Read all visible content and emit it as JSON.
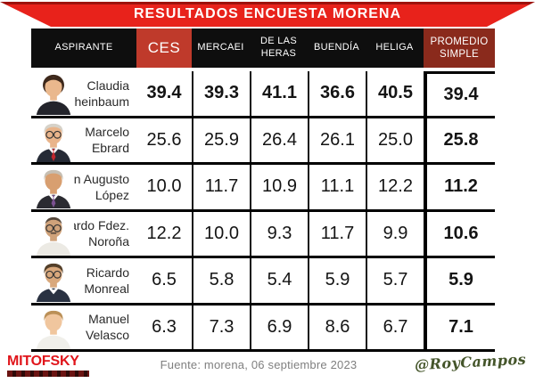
{
  "banner": {
    "title": "RESULTADOS ENCUESTA MORENA"
  },
  "table": {
    "columns": [
      {
        "key": "aspirante",
        "label_lines": [
          "ASPIRANTE"
        ]
      },
      {
        "key": "ces",
        "label_lines": [
          "CES"
        ],
        "highlight": "red"
      },
      {
        "key": "mercaei",
        "label_lines": [
          "MERCAEI"
        ]
      },
      {
        "key": "heras",
        "label_lines": [
          "DE LAS",
          "HERAS"
        ]
      },
      {
        "key": "buendia",
        "label_lines": [
          "BUENDÍA"
        ]
      },
      {
        "key": "heliga",
        "label_lines": [
          "HELIGA"
        ]
      },
      {
        "key": "promedio",
        "label_lines": [
          "PROMEDIO",
          "SIMPLE"
        ],
        "highlight": "maroon"
      }
    ],
    "rows": [
      {
        "name": "Claudia Sheinbaum",
        "name_lines": [
          "Claudia",
          "Sheinbaum"
        ],
        "values": [
          "39.4",
          "39.3",
          "41.1",
          "36.6",
          "40.5"
        ],
        "promedio": "39.4",
        "bold_all": true,
        "avatar": {
          "style": "f",
          "hair": "#3d281b",
          "skin": "#eab88d",
          "top": "#23242b",
          "glasses": false,
          "collar": false,
          "tie": null,
          "bald": false,
          "mustache": false
        }
      },
      {
        "name": "Marcelo Ebrard",
        "name_lines": [
          "Marcelo",
          "Ebrard"
        ],
        "values": [
          "25.6",
          "25.9",
          "26.4",
          "26.1",
          "25.0"
        ],
        "promedio": "25.8",
        "bold_all": false,
        "avatar": {
          "style": "m",
          "hair": "#d6d2c9",
          "skin": "#e9b48a",
          "top": "#262b36",
          "glasses": true,
          "collar": true,
          "tie": "#c1272d",
          "bald": false,
          "mustache": false
        }
      },
      {
        "name": "Adán Augusto López",
        "name_lines": [
          "Adán Augusto",
          "López"
        ],
        "values": [
          "10.0",
          "11.7",
          "10.9",
          "11.1",
          "12.2"
        ],
        "promedio": "11.2",
        "bold_all": false,
        "avatar": {
          "style": "m",
          "hair": "#c6bfb3",
          "skin": "#d89f70",
          "top": "#2b2b31",
          "glasses": false,
          "collar": true,
          "tie": "#7b5190",
          "bald": false,
          "mustache": false
        }
      },
      {
        "name": "Gerardo Fdez. Noroña",
        "name_lines": [
          "Gerardo Fdez.",
          "Noroña"
        ],
        "values": [
          "12.2",
          "10.0",
          "9.3",
          "11.7",
          "9.9"
        ],
        "promedio": "10.6",
        "bold_all": false,
        "avatar": {
          "style": "m",
          "hair": "#55473b",
          "skin": "#cfa27a",
          "top": "#eceae4",
          "glasses": true,
          "collar": false,
          "tie": null,
          "bald": true,
          "mustache": true
        }
      },
      {
        "name": "Ricardo Monreal",
        "name_lines": [
          "Ricardo",
          "Monreal"
        ],
        "values": [
          "6.5",
          "5.8",
          "5.4",
          "5.9",
          "5.7"
        ],
        "promedio": "5.9",
        "bold_all": false,
        "avatar": {
          "style": "m",
          "hair": "#533f29",
          "skin": "#d9a87c",
          "top": "#2a3242",
          "glasses": true,
          "collar": true,
          "tie": null,
          "bald": false,
          "mustache": false
        }
      },
      {
        "name": "Manuel Velasco",
        "name_lines": [
          "Manuel",
          "Velasco"
        ],
        "values": [
          "6.3",
          "7.3",
          "6.9",
          "8.6",
          "6.7"
        ],
        "promedio": "7.1",
        "bold_all": false,
        "avatar": {
          "style": "m",
          "hair": "#bb9057",
          "skin": "#f0c69e",
          "top": "#f0efea",
          "glasses": false,
          "collar": false,
          "tie": null,
          "bald": false,
          "mustache": false
        }
      }
    ]
  },
  "footer": {
    "logo_text": "MITOFSKY",
    "source_text": "Fuente: morena,  06 septiembre  2023",
    "signature_text": "@RoyCampos"
  },
  "colors": {
    "banner_red": "#e8221b",
    "banner_dark": "#9e120d",
    "head_black": "#0e0e0e",
    "ces_red": "#bf3a2b",
    "prom_maroon": "#8a2a1c",
    "mitofsky_red": "#e0151b",
    "fuente_gray": "#7f7f7f",
    "sign_green": "#44552a"
  },
  "chart_data": {
    "type": "table",
    "title": "RESULTADOS ENCUESTA MORENA",
    "columns": [
      "ASPIRANTE",
      "CES",
      "MERCAEI",
      "DE LAS HERAS",
      "BUENDÍA",
      "HELIGA",
      "PROMEDIO SIMPLE"
    ],
    "rows": [
      [
        "Claudia Sheinbaum",
        39.4,
        39.3,
        41.1,
        36.6,
        40.5,
        39.4
      ],
      [
        "Marcelo Ebrard",
        25.6,
        25.9,
        26.4,
        26.1,
        25.0,
        25.8
      ],
      [
        "Adán Augusto López",
        10.0,
        11.7,
        10.9,
        11.1,
        12.2,
        11.2
      ],
      [
        "Gerardo Fdez. Noroña",
        12.2,
        10.0,
        9.3,
        11.7,
        9.9,
        10.6
      ],
      [
        "Ricardo Monreal",
        6.5,
        5.8,
        5.4,
        5.9,
        5.7,
        5.9
      ],
      [
        "Manuel Velasco",
        6.3,
        7.3,
        6.9,
        8.6,
        6.7,
        7.1
      ]
    ],
    "source": "Fuente: morena, 06 septiembre 2023",
    "legend_position": "none",
    "grid": true
  }
}
